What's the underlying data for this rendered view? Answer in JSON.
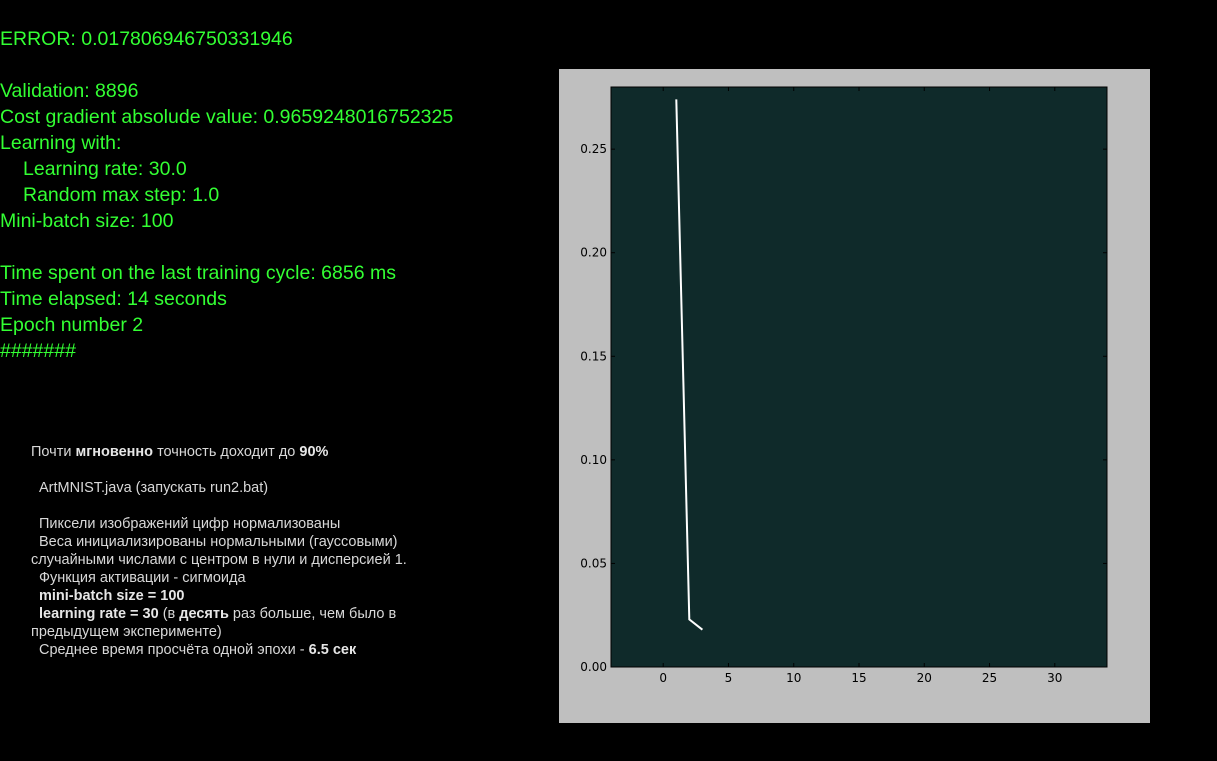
{
  "stats": {
    "error": "ERROR: 0.017806946750331946",
    "validation": "Validation: 8896",
    "cost_gradient": "Cost gradient absolude value: 0.9659248016752325",
    "learning_with": "Learning with:",
    "learning_rate": "Learning rate: 30.0",
    "random_max_step": "Random max step: 1.0",
    "mini_batch": "Mini-batch size: 100",
    "time_last_cycle": "Time spent on the last training cycle: 6856 ms",
    "time_elapsed": "Time elapsed: 14 seconds",
    "epoch": "Epoch number 2",
    "progress": "#######"
  },
  "notes": {
    "l1a": "Почти ",
    "l1b": "мгновенно",
    "l1c": " точность доходит до ",
    "l1d": "90%",
    "l2": "ArtMNIST.java (запускать run2.bat)",
    "l3": "Пиксели изображений цифр нормализованы",
    "l4": "Веса инициализированы нормальными (гауссовыми) случайными числами с центром в нули и дисперсией 1.",
    "l5": "Функция активации - сигмоида",
    "l6": "mini-batch size = 100",
    "l7a": "learning rate = 30",
    "l7b": " (в ",
    "l7c": "десять",
    "l7d": " раз больше, чем было в предыдущем эксперименте)",
    "l8a": "Среднее время просчёта одной эпохи - ",
    "l8b": "6.5 сек"
  },
  "colors": {
    "stats_text": "#33ff33",
    "notes_text": "#d8d8d8",
    "plot_bg": "#0f2a2a",
    "plot_frame": "#bfbfbf",
    "line": "#ffffff"
  },
  "chart_data": {
    "type": "line",
    "title": "",
    "xlabel": "",
    "ylabel": "",
    "x": [
      1,
      2,
      3
    ],
    "series": [
      {
        "values": [
          0.274,
          0.023,
          0.018
        ]
      }
    ],
    "xlim": [
      -4,
      34
    ],
    "ylim": [
      0.0,
      0.28
    ],
    "xticks": [
      0,
      5,
      10,
      15,
      20,
      25,
      30
    ],
    "yticks": [
      0.0,
      0.05,
      0.1,
      0.15,
      0.2,
      0.25
    ],
    "xtick_labels": [
      "0",
      "5",
      "10",
      "15",
      "20",
      "25",
      "30"
    ],
    "ytick_labels": [
      "0.00",
      "0.05",
      "0.10",
      "0.15",
      "0.20",
      "0.25"
    ],
    "grid": false,
    "legend": "none"
  }
}
